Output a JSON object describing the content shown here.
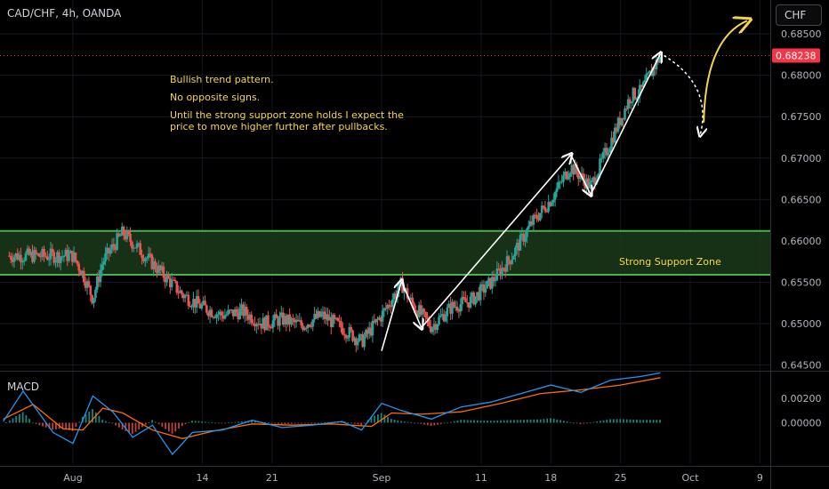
{
  "header": {
    "symbol_title": "CAD/CHF, 4h, OANDA",
    "currency_button": "CHF"
  },
  "annotations": {
    "notes": [
      "Bullish trend pattern.",
      "No opposite signs.",
      "Until the strong support zone holds I expect the\nprice to move higher further after pullbacks."
    ],
    "support_zone_label": "Strong Support Zone"
  },
  "colors": {
    "background": "#000000",
    "up_candle": "#26a69a",
    "down_candle": "#ef5350",
    "zone_fill": "#1b3a1b",
    "zone_border": "#4caf50",
    "note_text": "#f5d64a",
    "macd_line": "#2196f3",
    "signal_line": "#ff6d00",
    "price_badge": "#f23645"
  },
  "chart_data": {
    "type": "candlestick",
    "title": "CAD/CHF, 4h, OANDA",
    "price_axis": {
      "ticks": [
        "0.68500",
        "0.68000",
        "0.67500",
        "0.67000",
        "0.66500",
        "0.66000",
        "0.65500",
        "0.65000",
        "0.64500"
      ],
      "range": [
        0.6443,
        0.6891
      ],
      "current_price": "0.68238"
    },
    "time_axis": {
      "ticks": [
        "Aug",
        "14",
        "21",
        "Sep",
        "11",
        "18",
        "25",
        "Oct",
        "9"
      ]
    },
    "support_zone": {
      "low": 0.6559,
      "high": 0.6612,
      "label": "Strong Support Zone"
    },
    "price_path": [
      [
        "Aug 1",
        0.6582
      ],
      [
        "Aug 2",
        0.656
      ],
      [
        "Aug 3",
        0.653
      ],
      [
        "Aug 4",
        0.6575
      ],
      [
        "Aug 6",
        0.661
      ],
      [
        "Aug 8",
        0.6585
      ],
      [
        "Aug 10",
        0.656
      ],
      [
        "Aug 12",
        0.6535
      ],
      [
        "Aug 14",
        0.652
      ],
      [
        "Aug 16",
        0.651
      ],
      [
        "Aug 18",
        0.6515
      ],
      [
        "Aug 20",
        0.65
      ],
      [
        "Aug 22",
        0.6505
      ],
      [
        "Aug 24",
        0.6498
      ],
      [
        "Aug 26",
        0.651
      ],
      [
        "Aug 28",
        0.6495
      ],
      [
        "Aug 30",
        0.6478
      ],
      [
        "Sep 1",
        0.651
      ],
      [
        "Sep 3",
        0.6548
      ],
      [
        "Sep 4",
        0.6525
      ],
      [
        "Sep 6",
        0.6496
      ],
      [
        "Sep 8",
        0.652
      ],
      [
        "Sep 10",
        0.6528
      ],
      [
        "Sep 12",
        0.655
      ],
      [
        "Sep 14",
        0.658
      ],
      [
        "Sep 16",
        0.662
      ],
      [
        "Sep 18",
        0.665
      ],
      [
        "Sep 20",
        0.669
      ],
      [
        "Sep 22",
        0.6665
      ],
      [
        "Sep 24",
        0.672
      ],
      [
        "Sep 26",
        0.6775
      ],
      [
        "Sep 27",
        0.678
      ],
      [
        "Sep 29",
        0.6824
      ]
    ],
    "drawn_arrows": [
      {
        "name": "impulse-leg-1",
        "from": [
          "Sep 1",
          0.6467
        ],
        "to": [
          "Sep 3",
          0.6551
        ]
      },
      {
        "name": "correction-leg-1",
        "from": [
          "Sep 3",
          0.6551
        ],
        "to": [
          "Sep 5",
          0.6495
        ]
      },
      {
        "name": "impulse-leg-2",
        "from": [
          "Sep 5",
          0.6495
        ],
        "to": [
          "Sep 20",
          0.6704
        ]
      },
      {
        "name": "correction-leg-2",
        "from": [
          "Sep 20",
          0.6704
        ],
        "to": [
          "Sep 22",
          0.6656
        ]
      },
      {
        "name": "impulse-leg-3",
        "from": [
          "Sep 22",
          0.6656
        ],
        "to": [
          "Sep 29",
          0.6826
        ]
      }
    ],
    "projection": {
      "pullback_target": 0.6728,
      "continuation_target": 0.6866
    },
    "macd": {
      "label": "MACD",
      "ticks": [
        "0.00200",
        "0.00000"
      ],
      "range": [
        -0.0034,
        0.0042
      ],
      "macd_line": [
        [
          "Jul 25",
          0.0001
        ],
        [
          "Jul 27",
          0.0026
        ],
        [
          "Jul 30",
          -0.0008
        ],
        [
          "Aug 1",
          -0.0017
        ],
        [
          "Aug 3",
          0.0022
        ],
        [
          "Aug 5",
          0.0009
        ],
        [
          "Aug 7",
          -0.0012
        ],
        [
          "Aug 9",
          -0.0002
        ],
        [
          "Aug 11",
          -0.0026
        ],
        [
          "Aug 13",
          -0.0008
        ],
        [
          "Aug 16",
          -0.0006
        ],
        [
          "Aug 19",
          0.0002
        ],
        [
          "Aug 22",
          -0.0004
        ],
        [
          "Aug 25",
          -0.0002
        ],
        [
          "Aug 28",
          0.0001
        ],
        [
          "Aug 30",
          -0.0006
        ],
        [
          "Sep 1",
          0.0016
        ],
        [
          "Sep 3",
          0.001
        ],
        [
          "Sep 6",
          0.0003
        ],
        [
          "Sep 9",
          0.0013
        ],
        [
          "Sep 12",
          0.0017
        ],
        [
          "Sep 15",
          0.0024
        ],
        [
          "Sep 18",
          0.0031
        ],
        [
          "Sep 21",
          0.0025
        ],
        [
          "Sep 24",
          0.0035
        ],
        [
          "Sep 27",
          0.0038
        ],
        [
          "Sep 29",
          0.0041
        ]
      ],
      "signal_line": [
        [
          "Jul 25",
          0.0003
        ],
        [
          "Jul 28",
          0.0015
        ],
        [
          "Jul 31",
          -0.0005
        ],
        [
          "Aug 2",
          -0.0006
        ],
        [
          "Aug 4",
          0.0012
        ],
        [
          "Aug 6",
          0.0008
        ],
        [
          "Aug 9",
          -0.0006
        ],
        [
          "Aug 12",
          -0.0013
        ],
        [
          "Aug 15",
          -0.0007
        ],
        [
          "Aug 19",
          -0.0001
        ],
        [
          "Aug 23",
          -0.0002
        ],
        [
          "Aug 27",
          -0.0001
        ],
        [
          "Aug 31",
          -0.0003
        ],
        [
          "Sep 2",
          0.0008
        ],
        [
          "Sep 5",
          0.0007
        ],
        [
          "Sep 9",
          0.0009
        ],
        [
          "Sep 13",
          0.0016
        ],
        [
          "Sep 17",
          0.0024
        ],
        [
          "Sep 21",
          0.0027
        ],
        [
          "Sep 25",
          0.0031
        ],
        [
          "Sep 29",
          0.0037
        ]
      ]
    }
  }
}
